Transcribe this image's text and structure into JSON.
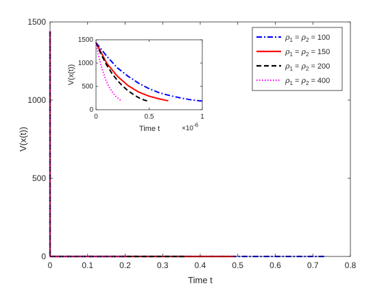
{
  "chart_data": [
    {
      "type": "line",
      "xlabel": "Time t",
      "ylabel": "V(x(t))",
      "xlim": [
        0,
        0.8
      ],
      "ylim": [
        0,
        1500
      ],
      "xticks": [
        0,
        0.1,
        0.2,
        0.3,
        0.4,
        0.5,
        0.6,
        0.7,
        0.8
      ],
      "xtick_labels": [
        "0",
        "0.1",
        "0.2",
        "0.3",
        "0.4",
        "0.5",
        "0.6",
        "0.7",
        "0.8"
      ],
      "yticks": [
        0,
        500,
        1000,
        1500
      ],
      "ytick_labels": [
        "0",
        "500",
        "1000",
        "1500"
      ],
      "grid": false,
      "legend_position": "top-right",
      "series": [
        {
          "name": "ρ1 = ρ2 = 100",
          "legend": {
            "sym": "ρ",
            "sub1": "1",
            "mid": " = ",
            "sub2": "2",
            "tail": " = 100"
          },
          "color": "#0000ff",
          "dash": "dashdot",
          "x": [
            0,
            0,
            0.2,
            0.4,
            0.5,
            0.73
          ],
          "y": [
            1440,
            0,
            0,
            0,
            0,
            0
          ]
        },
        {
          "name": "ρ1 = ρ2 = 150",
          "legend": {
            "sym": "ρ",
            "sub1": "1",
            "mid": " = ",
            "sub2": "2",
            "tail": " = 150"
          },
          "color": "#ff0000",
          "dash": "solid",
          "x": [
            0,
            0,
            0.2,
            0.36,
            0.49
          ],
          "y": [
            1440,
            0,
            0,
            0,
            0
          ]
        },
        {
          "name": "ρ1 = ρ2 = 200",
          "legend": {
            "sym": "ρ",
            "sub1": "1",
            "mid": " = ",
            "sub2": "2",
            "tail": " = 200"
          },
          "color": "#000000",
          "dash": "dash",
          "x": [
            0,
            0,
            0.2,
            0.36
          ],
          "y": [
            1440,
            0,
            0,
            0
          ]
        },
        {
          "name": "ρ1 = ρ2 = 400",
          "legend": {
            "sym": "ρ",
            "sub1": "1",
            "mid": " = ",
            "sub2": "2",
            "tail": " = 400"
          },
          "color": "#ff00ff",
          "dash": "dot",
          "x": [
            0,
            0,
            0.2
          ],
          "y": [
            1440,
            0,
            0
          ]
        }
      ]
    },
    {
      "type": "line",
      "xlabel": "Time t",
      "ylabel": "V(x(t))",
      "xlim": [
        0,
        1
      ],
      "ylim": [
        0,
        1500
      ],
      "xticks": [
        0,
        0.5,
        1
      ],
      "xtick_labels": [
        "0",
        "0.5",
        "1"
      ],
      "yticks": [
        0,
        500,
        1000,
        1500
      ],
      "ytick_labels": [
        "0",
        "500",
        "1000",
        "1500"
      ],
      "x_exponent": {
        "base": "×10",
        "power": "-6"
      },
      "grid": false,
      "series": [
        {
          "color": "#0000ff",
          "dash": "dashdot",
          "x": [
            0,
            0.1,
            0.2,
            0.3,
            0.4,
            0.5,
            0.6,
            0.7,
            0.8,
            0.9,
            1.0
          ],
          "y": [
            1440,
            1150,
            900,
            720,
            570,
            450,
            360,
            300,
            250,
            210,
            185
          ]
        },
        {
          "color": "#ff0000",
          "dash": "solid",
          "x": [
            0,
            0.1,
            0.2,
            0.3,
            0.4,
            0.5,
            0.6,
            0.68
          ],
          "y": [
            1440,
            1000,
            720,
            520,
            380,
            290,
            230,
            190
          ]
        },
        {
          "color": "#000000",
          "dash": "dash",
          "x": [
            0,
            0.05,
            0.1,
            0.15,
            0.2,
            0.25,
            0.3,
            0.35,
            0.4,
            0.45,
            0.5
          ],
          "y": [
            1440,
            1180,
            960,
            780,
            630,
            510,
            410,
            330,
            260,
            210,
            175
          ]
        },
        {
          "color": "#ff00ff",
          "dash": "dot",
          "x": [
            0,
            0.03,
            0.06,
            0.09,
            0.12,
            0.15,
            0.18,
            0.21,
            0.24
          ],
          "y": [
            1440,
            1100,
            850,
            650,
            500,
            390,
            300,
            240,
            190
          ]
        }
      ]
    }
  ]
}
